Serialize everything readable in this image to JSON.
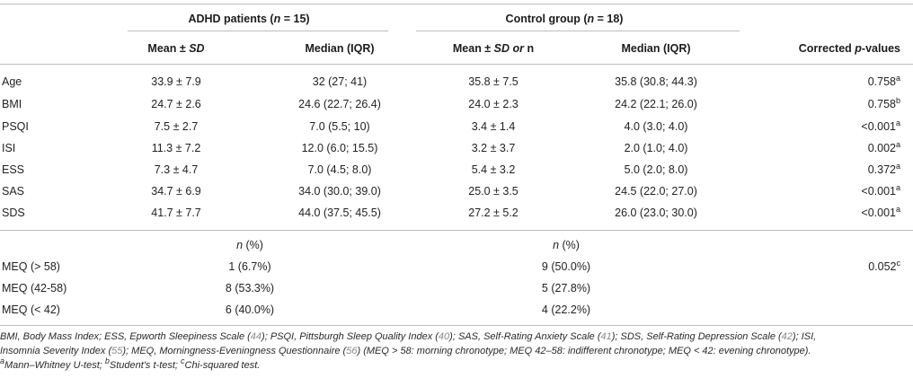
{
  "header": {
    "group1": {
      "label": "ADHD patients (",
      "n": "n",
      "value": " = 15)"
    },
    "group2": {
      "label": "Control group (",
      "n": "n",
      "value": " = 18)"
    },
    "col_mean_a": "Mean ±",
    "col_mean_sd": "SD",
    "col_median_a": "Median (IQR)",
    "col_mean_b": "Mean ±",
    "col_mean_sd_or": "SD or",
    "col_mean_n": "n",
    "col_median_b": "Median (IQR)",
    "col_p_a": "Corrected",
    "col_p_b": "p",
    "col_p_c": "-values"
  },
  "rows": [
    {
      "label": "Age",
      "m1": "33.9 ± 7.9",
      "md1": "32 (27; 41)",
      "m2": "35.8 ± 7.5",
      "md2": "35.8 (30.8; 44.3)",
      "p": "0.758",
      "sup": "a"
    },
    {
      "label": "BMI",
      "m1": "24.7 ± 2.6",
      "md1": "24.6 (22.7; 26.4)",
      "m2": "24.0 ± 2.3",
      "md2": "24.2 (22.1; 26.0)",
      "p": "0.758",
      "sup": "b"
    },
    {
      "label": "PSQI",
      "m1": "7.5 ± 2.7",
      "md1": "7.0 (5.5; 10)",
      "m2": "3.4 ± 1.4",
      "md2": "4.0 (3.0; 4.0)",
      "p": "<0.001",
      "sup": "a"
    },
    {
      "label": "ISI",
      "m1": "11.3 ± 7.2",
      "md1": "12.0 (6.0; 15.5)",
      "m2": "3.2 ± 3.7",
      "md2": "2.0 (1.0; 4.0)",
      "p": "0.002",
      "sup": "a"
    },
    {
      "label": "ESS",
      "m1": "7.3 ± 4.7",
      "md1": "7.0 (4.5; 8.0)",
      "m2": "5.4 ± 3.2",
      "md2": "5.0 (2.0; 8.0)",
      "p": "0.372",
      "sup": "a"
    },
    {
      "label": "SAS",
      "m1": "34.7 ± 6.9",
      "md1": "34.0 (30.0; 39.0)",
      "m2": "25.0 ± 3.5",
      "md2": "24.5 (22.0; 27.0)",
      "p": "<0.001",
      "sup": "a"
    },
    {
      "label": "SDS",
      "m1": "41.7 ± 7.7",
      "md1": "44.0 (37.5; 45.5)",
      "m2": "27.2 ± 5.2",
      "md2": "26.0 (23.0; 30.0)",
      "p": "<0.001",
      "sup": "a"
    }
  ],
  "meq_header": {
    "n": "n",
    "pct": " (%)"
  },
  "meq_rows": [
    {
      "label": "MEQ (> 58)",
      "g1": "1 (6.7%)",
      "g2": "9 (50.0%)",
      "p": "0.052",
      "sup": "c"
    },
    {
      "label": "MEQ (42-58)",
      "g1": "8 (53.3%)",
      "g2": "5 (27.8%)",
      "p": "",
      "sup": ""
    },
    {
      "label": "MEQ (< 42)",
      "g1": "6 (40.0%)",
      "g2": "4 (22.2%)",
      "p": "",
      "sup": ""
    }
  ],
  "footnote": {
    "l1a": "BMI, Body Mass Index; ESS, Epworth Sleepiness Scale (",
    "r44": "44",
    "l1b": "); PSQI, Pittsburgh Sleep Quality Index (",
    "r40": "40",
    "l1c": "); SAS, Self-Rating Anxiety Scale (",
    "r41": "41",
    "l1d": "); SDS, Self-Rating Depression Scale (",
    "r42": "42",
    "l1e": "); ISI,",
    "l2a": "Insomnia Severity Index (",
    "r55": "55",
    "l2b": "); MEQ, Morningness-Eveningness Questionnaire (",
    "r56": "56",
    "l2c": ") (MEQ > 58: morning chronotype; MEQ 42–58: indifferent chronotype; MEQ < 42: evening chronotype).",
    "sa": "a",
    "l3a": "Mann–Whitney U-test; ",
    "sb": "b",
    "l3b": "Student's t-test; ",
    "sc": "c",
    "l3c": "Chi-squared test."
  }
}
